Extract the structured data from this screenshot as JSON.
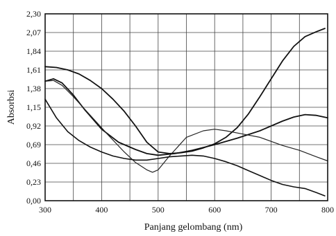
{
  "chart_data": {
    "type": "line",
    "title": "",
    "xlabel": "Panjang gelombang (nm)",
    "ylabel": "Absorbsi",
    "xlim": [
      300,
      800
    ],
    "ylim": [
      0,
      2.3
    ],
    "xticks": [
      300,
      400,
      500,
      600,
      700,
      800
    ],
    "xtick_labels": [
      "300",
      "400",
      "500",
      "600",
      "700",
      "800"
    ],
    "yticks": [
      0,
      0.23,
      0.46,
      0.69,
      0.92,
      1.15,
      1.38,
      1.61,
      1.84,
      2.07,
      2.3
    ],
    "ytick_labels": [
      "0,00",
      "0,23",
      "0,46",
      "0,69",
      "0,92",
      "1,15",
      "1,38",
      "1,61",
      "1,84",
      "2,07",
      "2,30"
    ],
    "grid": true,
    "legend": "none",
    "series": [
      {
        "color": "#111111",
        "x": [
          300,
          320,
          340,
          360,
          380,
          400,
          420,
          440,
          460,
          480,
          500,
          520,
          540,
          560,
          580,
          600,
          620,
          640,
          660,
          680,
          700,
          720,
          740,
          760,
          780,
          795
        ],
        "y": [
          1.65,
          1.64,
          1.61,
          1.56,
          1.48,
          1.38,
          1.25,
          1.1,
          0.92,
          0.72,
          0.6,
          0.58,
          0.59,
          0.61,
          0.65,
          0.7,
          0.78,
          0.9,
          1.07,
          1.28,
          1.5,
          1.72,
          1.9,
          2.02,
          2.08,
          2.12
        ]
      },
      {
        "color": "#111111",
        "x": [
          300,
          315,
          330,
          350,
          370,
          400,
          430,
          460,
          480,
          500,
          530,
          560,
          600,
          640,
          680,
          700,
          720,
          740,
          760,
          780,
          800
        ],
        "y": [
          1.47,
          1.5,
          1.45,
          1.3,
          1.12,
          0.88,
          0.72,
          0.63,
          0.58,
          0.56,
          0.58,
          0.62,
          0.69,
          0.77,
          0.86,
          0.92,
          0.98,
          1.03,
          1.06,
          1.05,
          1.02
        ]
      },
      {
        "color": "#222222",
        "x": [
          300,
          315,
          330,
          350,
          380,
          410,
          440,
          460,
          480,
          490,
          500,
          520,
          550,
          580,
          600,
          620,
          650,
          680,
          700,
          720,
          750,
          780,
          800
        ],
        "y": [
          1.47,
          1.48,
          1.42,
          1.28,
          1.05,
          0.82,
          0.6,
          0.47,
          0.38,
          0.35,
          0.38,
          0.55,
          0.78,
          0.86,
          0.88,
          0.86,
          0.82,
          0.78,
          0.73,
          0.68,
          0.62,
          0.54,
          0.49
        ]
      },
      {
        "color": "#111111",
        "x": [
          300,
          320,
          340,
          360,
          380,
          400,
          420,
          440,
          460,
          480,
          500,
          520,
          540,
          560,
          580,
          600,
          620,
          640,
          660,
          680,
          700,
          720,
          740,
          760,
          780,
          795
        ],
        "y": [
          1.25,
          1.02,
          0.85,
          0.74,
          0.66,
          0.6,
          0.55,
          0.52,
          0.5,
          0.5,
          0.52,
          0.54,
          0.55,
          0.56,
          0.55,
          0.52,
          0.48,
          0.43,
          0.37,
          0.31,
          0.25,
          0.2,
          0.17,
          0.15,
          0.1,
          0.06
        ]
      }
    ]
  }
}
